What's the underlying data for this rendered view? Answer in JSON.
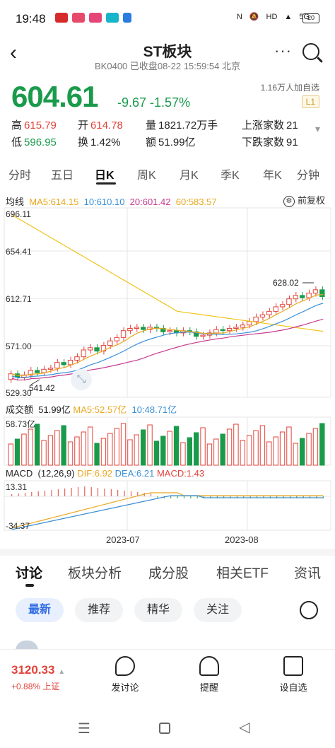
{
  "status": {
    "time": "19:48",
    "battery": "20"
  },
  "header": {
    "title": "ST板块",
    "subtitle": "BK0400 已收盘08-22 15:59:54 北京",
    "more": "···"
  },
  "quote": {
    "price": "604.61",
    "change": "-9.67",
    "pct": "-1.57%",
    "followers": "1.16万人加自选",
    "level": "L1",
    "high_label": "高",
    "high": "615.79",
    "open_label": "开",
    "open": "614.78",
    "vol_label": "量",
    "vol": "1821.72万手",
    "up_label": "上涨家数",
    "up": "21",
    "low_label": "低",
    "low": "596.95",
    "turn_label": "换",
    "turn": "1.42%",
    "amt_label": "额",
    "amt": "51.99亿",
    "down_label": "下跌家数",
    "down": "91"
  },
  "tabs": [
    "分时",
    "五日",
    "日K",
    "周K",
    "月K",
    "季K",
    "年K",
    "分钟"
  ],
  "ma": {
    "label": "均线",
    "ma5": "MA5:614.15",
    "ma10": "10:610.10",
    "ma20": "20:601.42",
    "ma60": "60:583.57",
    "restore": "前复权"
  },
  "colors": {
    "up": "#e2433a",
    "down": "#1a9b4b",
    "ma5": "#e9a820",
    "ma10": "#3b8fd4",
    "ma20": "#c73a8e",
    "ma60": "#f0c419"
  },
  "yaxis": [
    "696.11",
    "654.41",
    "612.71",
    "571.00",
    "529.30"
  ],
  "annot": {
    "max": "628.02",
    "min": "541.42"
  },
  "vol": {
    "label": "成交额",
    "v1": "51.99亿",
    "ma5": "MA5:52.57亿",
    "ma10": "10:48.71亿",
    "axis": "58.73亿"
  },
  "macd": {
    "label": "MACD",
    "params": "(12,26,9)",
    "dif": "DIF:6.92",
    "dea": "DEA:6.21",
    "macd": "MACD:1.43",
    "top": "13.31",
    "bottom": "-34.37"
  },
  "dates": [
    "2023-07",
    "2023-08"
  ],
  "bottomtabs": [
    "讨论",
    "板块分析",
    "成分股",
    "相关ETF",
    "资讯"
  ],
  "pills": [
    "最新",
    "推荐",
    "精华",
    "关注"
  ],
  "bottombar": {
    "index": "3120.33",
    "index_sub": "+0.88% 上证",
    "discuss": "发讨论",
    "remind": "提醒",
    "watch": "设自选"
  }
}
